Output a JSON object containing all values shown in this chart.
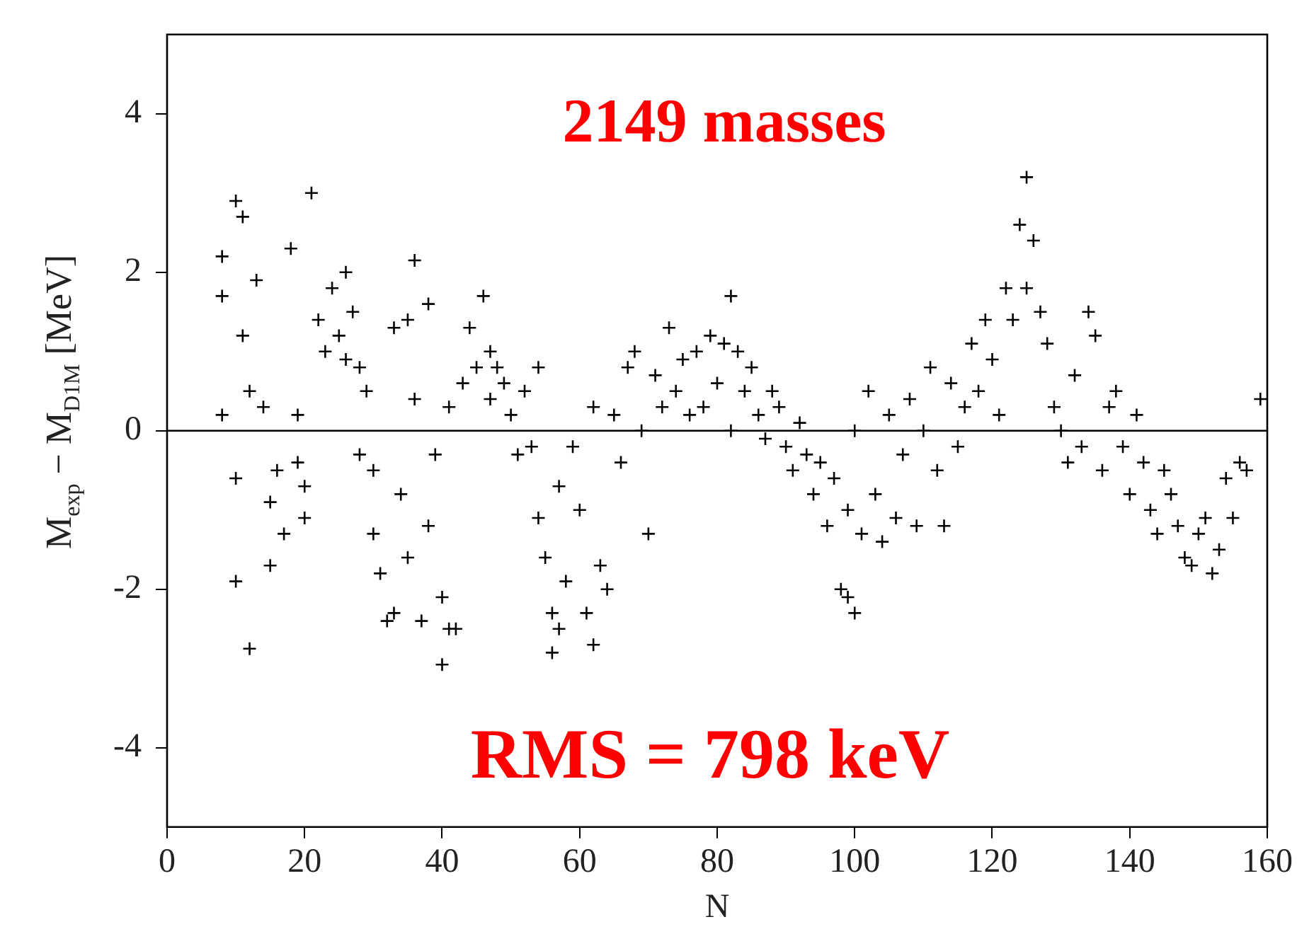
{
  "chart_data": {
    "type": "scatter",
    "xlabel": "N",
    "ylabel": "M$_{exp}$ − M$_{D1M}$ [MeV]",
    "annotations": [
      "2149 masses",
      "RMS = 798 keV"
    ],
    "xlim": [
      0,
      160
    ],
    "xticks": [
      0,
      20,
      40,
      60,
      80,
      100,
      120,
      140,
      160
    ],
    "ylim": [
      -5,
      5
    ],
    "yticks": [
      -4,
      -2,
      0,
      2,
      4
    ],
    "grid": false,
    "legend": false,
    "marker": "cross",
    "ref_lines": [
      {
        "axis": "y",
        "value": 0,
        "color": "#000000"
      }
    ],
    "series": [
      {
        "color": "#000000",
        "x": [
          8,
          8,
          8,
          10,
          11,
          10,
          10,
          12,
          11,
          12,
          13,
          14,
          15,
          15,
          16,
          17,
          18,
          19,
          19,
          20,
          20,
          21,
          22,
          23,
          24,
          25,
          26,
          26,
          27,
          28,
          28,
          29,
          30,
          30,
          31,
          32,
          33,
          33,
          34,
          35,
          35,
          36,
          36,
          37,
          38,
          38,
          39,
          40,
          40,
          41,
          42,
          41,
          43,
          44,
          45,
          46,
          47,
          47,
          48,
          49,
          50,
          51,
          52,
          53,
          54,
          54,
          55,
          56,
          56,
          57,
          57,
          58,
          59,
          60,
          61,
          62,
          62,
          63,
          64,
          65,
          66,
          67,
          68,
          69,
          70,
          71,
          72,
          73,
          74,
          75,
          76,
          77,
          78,
          79,
          80,
          81,
          82,
          82,
          83,
          84,
          85,
          86,
          87,
          88,
          89,
          90,
          91,
          92,
          93,
          94,
          95,
          96,
          97,
          98,
          99,
          100,
          99,
          100,
          101,
          102,
          103,
          104,
          105,
          106,
          107,
          108,
          109,
          110,
          111,
          112,
          113,
          114,
          115,
          116,
          117,
          118,
          119,
          120,
          121,
          122,
          123,
          124,
          125,
          125,
          126,
          127,
          128,
          129,
          130,
          131,
          132,
          133,
          134,
          135,
          136,
          137,
          138,
          139,
          140,
          141,
          142,
          143,
          144,
          145,
          146,
          147,
          148,
          149,
          150,
          151,
          152,
          153,
          154,
          155,
          156,
          157,
          159
        ],
        "values": [
          2.2,
          1.7,
          0.2,
          2.9,
          2.7,
          -0.6,
          -1.9,
          -2.75,
          1.2,
          0.5,
          1.9,
          0.3,
          -0.9,
          -1.7,
          -0.5,
          -1.3,
          2.3,
          0.2,
          -0.4,
          -0.7,
          -1.1,
          3.0,
          1.4,
          1.0,
          1.8,
          1.2,
          2.0,
          0.9,
          1.5,
          0.8,
          -0.3,
          0.5,
          -0.5,
          -1.3,
          -1.8,
          -2.4,
          -2.3,
          1.3,
          -0.8,
          1.4,
          -1.6,
          2.15,
          0.4,
          -2.4,
          1.6,
          -1.2,
          -0.3,
          -2.1,
          -2.95,
          -2.5,
          -2.5,
          0.3,
          0.6,
          1.3,
          0.8,
          1.7,
          1.0,
          0.4,
          0.8,
          0.6,
          0.2,
          -0.3,
          0.5,
          -0.2,
          0.8,
          -1.1,
          -1.6,
          -2.3,
          -2.8,
          -2.5,
          -0.7,
          -1.9,
          -0.2,
          -1.0,
          -2.3,
          -2.7,
          0.3,
          -1.7,
          -2.0,
          0.2,
          -0.4,
          0.8,
          1.0,
          0.0,
          -1.3,
          0.7,
          0.3,
          1.3,
          0.5,
          0.9,
          0.2,
          1.0,
          0.3,
          1.2,
          0.6,
          1.1,
          1.7,
          0.0,
          1.0,
          0.5,
          0.8,
          0.2,
          -0.1,
          0.5,
          0.3,
          -0.2,
          -0.5,
          0.1,
          -0.3,
          -0.8,
          -0.4,
          -1.2,
          -0.6,
          -2.0,
          -2.1,
          -2.3,
          -1.0,
          0.0,
          -1.3,
          0.5,
          -0.8,
          -1.4,
          0.2,
          -1.1,
          -0.3,
          0.4,
          -1.2,
          0.0,
          0.8,
          -0.5,
          -1.2,
          0.6,
          -0.2,
          0.3,
          1.1,
          0.5,
          1.4,
          0.9,
          0.2,
          1.8,
          1.4,
          2.6,
          3.2,
          1.8,
          2.4,
          1.5,
          1.1,
          0.3,
          0.0,
          -0.4,
          0.7,
          -0.2,
          1.5,
          1.2,
          -0.5,
          0.3,
          0.5,
          -0.2,
          -0.8,
          0.2,
          -0.4,
          -1.0,
          -1.3,
          -0.5,
          -0.8,
          -1.2,
          -1.6,
          -1.7,
          -1.3,
          -1.1,
          -1.8,
          -1.5,
          -0.6,
          -1.1,
          -0.4,
          -0.5,
          0.4
        ]
      }
    ]
  }
}
